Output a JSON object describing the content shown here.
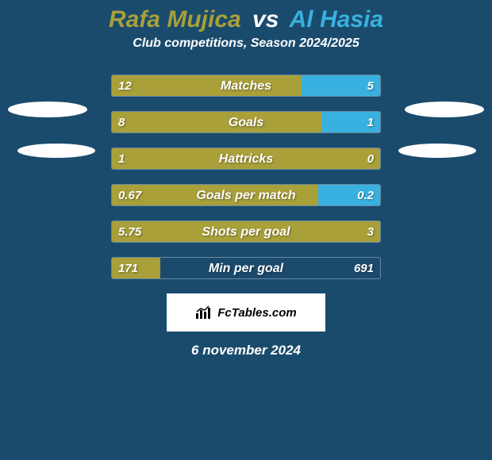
{
  "header": {
    "player1": "Rafa Mujica",
    "vs": "vs",
    "player2": "Al Hasia",
    "subtitle": "Club competitions, Season 2024/2025",
    "title_color_p1": "#a9a03a",
    "title_color_vs": "#ffffff",
    "title_color_p2": "#39b1e0",
    "title_fontsize": 30,
    "subtitle_fontsize": 16
  },
  "colors": {
    "background": "#1a4b6d",
    "left_fill": "#a9a03a",
    "right_fill": "#39b1e0",
    "track_border": "rgba(255,255,255,0.35)",
    "text": "#ffffff"
  },
  "typography": {
    "value_fontsize": 15,
    "label_fontsize": 16
  },
  "stats": [
    {
      "label": "Matches",
      "left_val": "12",
      "right_val": "5",
      "left_pct": 70.6,
      "right_pct": 29.4
    },
    {
      "label": "Goals",
      "left_val": "8",
      "right_val": "1",
      "left_pct": 78,
      "right_pct": 22
    },
    {
      "label": "Hattricks",
      "left_val": "1",
      "right_val": "0",
      "left_pct": 100,
      "right_pct": 0
    },
    {
      "label": "Goals per match",
      "left_val": "0.67",
      "right_val": "0.2",
      "left_pct": 77,
      "right_pct": 23
    },
    {
      "label": "Shots per goal",
      "left_val": "5.75",
      "right_val": "3",
      "left_pct": 100,
      "right_pct": 0
    },
    {
      "label": "Min per goal",
      "left_val": "171",
      "right_val": "691",
      "left_pct": 18,
      "right_pct": 0
    }
  ],
  "footer": {
    "brand": "FcTables.com",
    "date": "6 november 2024",
    "date_fontsize": 17
  }
}
